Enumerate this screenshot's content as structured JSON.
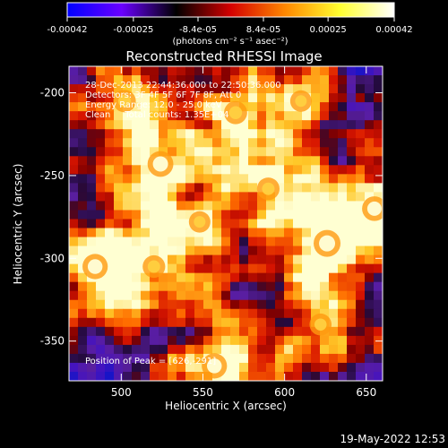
{
  "chart_data": {
    "type": "heatmap",
    "title": "Reconstructed RHESSI Image",
    "xlabel": "Heliocentric X (arcsec)",
    "ylabel": "Heliocentric Y (arcsec)",
    "xlim": [
      468,
      660
    ],
    "ylim": [
      -374,
      -184
    ],
    "x_ticks": [
      500,
      550,
      600,
      650
    ],
    "y_ticks": [
      -200,
      -250,
      -300,
      -350
    ],
    "colorbar": {
      "min": -0.00042,
      "max": 0.00042,
      "tick_values": [
        -0.00042,
        -0.00025,
        -8.4e-05,
        8.4e-05,
        0.00025,
        0.00042
      ],
      "tick_labels": [
        "-0.00042",
        "-0.00025",
        "-8.4e-05",
        "8.4e-05",
        "0.00025",
        "0.00042"
      ],
      "unit_label": "(photons cm⁻² s⁻¹ asec⁻²)",
      "colormap": [
        "#0000ff",
        "#6a00ff",
        "#000000",
        "#d40000",
        "#ff8800",
        "#ffff30",
        "#ffffff"
      ]
    },
    "annotations": [
      "28-Dec-2013 22:44:36.000 to 22:50:36.000",
      "Detectors: 3F 4F 5F 6F 7F 8F, Att 0",
      "Energy Range: 12.0 - 25.0 keV",
      "Clean     Total counts: 1.35E+04"
    ],
    "peak_label": "Position of Peak = [626,-291]",
    "bright_sources": [
      {
        "x": 626,
        "y": -291,
        "v": 1.0
      },
      {
        "x": 524,
        "y": -243,
        "v": 0.9
      },
      {
        "x": 484,
        "y": -305,
        "v": 0.85
      },
      {
        "x": 557,
        "y": -365,
        "v": 0.85
      },
      {
        "x": 655,
        "y": -270,
        "v": 0.8
      },
      {
        "x": 570,
        "y": -212,
        "v": 0.65
      },
      {
        "x": 590,
        "y": -258,
        "v": 0.6
      },
      {
        "x": 520,
        "y": -305,
        "v": 0.6
      },
      {
        "x": 502,
        "y": -205,
        "v": 0.6
      },
      {
        "x": 622,
        "y": -340,
        "v": 0.55
      },
      {
        "x": 548,
        "y": -278,
        "v": 0.5
      },
      {
        "x": 610,
        "y": -205,
        "v": 0.5
      }
    ]
  },
  "footer": {
    "timestamp": "19-May-2022 12:53"
  }
}
